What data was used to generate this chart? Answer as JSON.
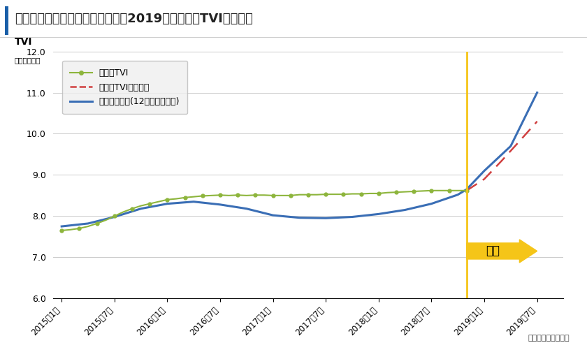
{
  "title": "図　大阪府の需給ギャップ推移と2019年の空室率TVI推移予測",
  "ylabel_main": "TVI",
  "ylabel_sub": "（ポイント）",
  "credit": "分析：株式会社タス",
  "ylim": [
    6.0,
    12.0
  ],
  "yticks": [
    6.0,
    7.0,
    8.0,
    9.0,
    10.0,
    11.0,
    12.0
  ],
  "xtick_labels": [
    "2015年1月",
    "2015年7月",
    "2016年1月",
    "2016年7月",
    "2017年1月",
    "2017年7月",
    "2018年1月",
    "2018年7月",
    "2019年1月",
    "2019年7月"
  ],
  "forecast_label": "予測",
  "legend_tvi": "空室率TVI",
  "legend_forecast": "空室率TVI推移予測",
  "legend_gap": "需給ギャップ(12か月移動平均)",
  "color_tvi": "#8db53c",
  "color_forecast": "#d04040",
  "color_gap": "#3a6eb5",
  "color_vline": "#f5c518",
  "color_arrow": "#f5c518",
  "color_grid": "#cccccc",
  "color_bg": "#ffffff",
  "color_title_bar": "#1a5fa8",
  "vline_month": 46,
  "xlim_min": -1,
  "xlim_max": 57,
  "xtick_positions": [
    0,
    6,
    12,
    18,
    24,
    30,
    36,
    42,
    48,
    54
  ],
  "tvi_months": [
    0,
    1,
    2,
    3,
    4,
    5,
    6,
    7,
    8,
    9,
    10,
    11,
    12,
    13,
    14,
    15,
    16,
    17,
    18,
    19,
    20,
    21,
    22,
    23,
    24,
    25,
    26,
    27,
    28,
    29,
    30,
    31,
    32,
    33,
    34,
    35,
    36,
    37,
    38,
    39,
    40,
    41,
    42,
    43,
    44,
    45,
    46
  ],
  "tvi_vals": [
    7.65,
    7.67,
    7.7,
    7.75,
    7.82,
    7.9,
    8.0,
    8.1,
    8.18,
    8.25,
    8.3,
    8.35,
    8.4,
    8.42,
    8.45,
    8.47,
    8.49,
    8.5,
    8.51,
    8.5,
    8.51,
    8.5,
    8.51,
    8.51,
    8.5,
    8.5,
    8.5,
    8.52,
    8.52,
    8.52,
    8.53,
    8.53,
    8.53,
    8.54,
    8.54,
    8.55,
    8.55,
    8.57,
    8.58,
    8.59,
    8.6,
    8.61,
    8.62,
    8.62,
    8.62,
    8.62,
    8.62
  ],
  "forecast_x": [
    46,
    48,
    50,
    52,
    54
  ],
  "forecast_y": [
    8.62,
    8.9,
    9.35,
    9.82,
    10.3
  ],
  "gap_x": [
    0,
    3,
    6,
    9,
    12,
    15,
    18,
    21,
    24,
    27,
    30,
    33,
    36,
    39,
    42,
    45,
    46,
    48,
    51,
    54
  ],
  "gap_y": [
    7.75,
    7.82,
    7.98,
    8.18,
    8.3,
    8.35,
    8.28,
    8.18,
    8.02,
    7.96,
    7.95,
    7.98,
    8.05,
    8.15,
    8.3,
    8.52,
    8.65,
    9.1,
    9.7,
    11.0
  ]
}
